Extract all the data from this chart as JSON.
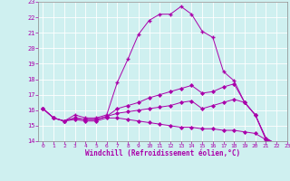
{
  "xlabel": "Windchill (Refroidissement éolien,°C)",
  "ylabel": "",
  "xlim": [
    -0.5,
    23
  ],
  "ylim": [
    14,
    23
  ],
  "yticks": [
    14,
    15,
    16,
    17,
    18,
    19,
    20,
    21,
    22,
    23
  ],
  "xticks": [
    0,
    1,
    2,
    3,
    4,
    5,
    6,
    7,
    8,
    9,
    10,
    11,
    12,
    13,
    14,
    15,
    16,
    17,
    18,
    19,
    20,
    21,
    22,
    23
  ],
  "bg_color": "#cff0f0",
  "line_color": "#aa00aa",
  "grid_color": "#ffffff",
  "lines": [
    {
      "x": [
        0,
        1,
        2,
        3,
        4,
        5,
        6,
        7,
        8,
        9,
        10,
        11,
        12,
        13,
        14,
        15,
        16,
        17,
        18,
        19,
        20,
        21,
        22,
        23
      ],
      "y": [
        16.1,
        15.5,
        15.3,
        15.7,
        15.5,
        15.5,
        15.7,
        17.8,
        19.3,
        20.9,
        21.8,
        22.2,
        22.2,
        22.7,
        22.2,
        21.1,
        20.7,
        18.5,
        17.9,
        16.5,
        15.7,
        14.1,
        13.75,
        13.65
      ],
      "marker": "+"
    },
    {
      "x": [
        0,
        1,
        2,
        3,
        4,
        5,
        6,
        7,
        8,
        9,
        10,
        11,
        12,
        13,
        14,
        15,
        16,
        17,
        18,
        19,
        20,
        21,
        22,
        23
      ],
      "y": [
        16.1,
        15.5,
        15.3,
        15.5,
        15.4,
        15.4,
        15.6,
        16.1,
        16.3,
        16.5,
        16.8,
        17.0,
        17.2,
        17.4,
        17.6,
        17.1,
        17.2,
        17.5,
        17.7,
        16.5,
        15.7,
        14.2,
        13.8,
        13.65
      ],
      "marker": "D"
    },
    {
      "x": [
        0,
        1,
        2,
        3,
        4,
        5,
        6,
        7,
        8,
        9,
        10,
        11,
        12,
        13,
        14,
        15,
        16,
        17,
        18,
        19,
        20,
        21,
        22,
        23
      ],
      "y": [
        16.1,
        15.5,
        15.3,
        15.5,
        15.4,
        15.4,
        15.6,
        15.8,
        15.9,
        16.0,
        16.1,
        16.2,
        16.3,
        16.5,
        16.6,
        16.1,
        16.3,
        16.5,
        16.7,
        16.5,
        15.7,
        14.2,
        13.8,
        13.65
      ],
      "marker": "D"
    },
    {
      "x": [
        0,
        1,
        2,
        3,
        4,
        5,
        6,
        7,
        8,
        9,
        10,
        11,
        12,
        13,
        14,
        15,
        16,
        17,
        18,
        19,
        20,
        21,
        22,
        23
      ],
      "y": [
        16.1,
        15.5,
        15.3,
        15.4,
        15.3,
        15.3,
        15.5,
        15.5,
        15.4,
        15.3,
        15.2,
        15.1,
        15.0,
        14.9,
        14.9,
        14.8,
        14.8,
        14.7,
        14.7,
        14.6,
        14.5,
        14.1,
        13.8,
        13.65
      ],
      "marker": "D"
    }
  ]
}
